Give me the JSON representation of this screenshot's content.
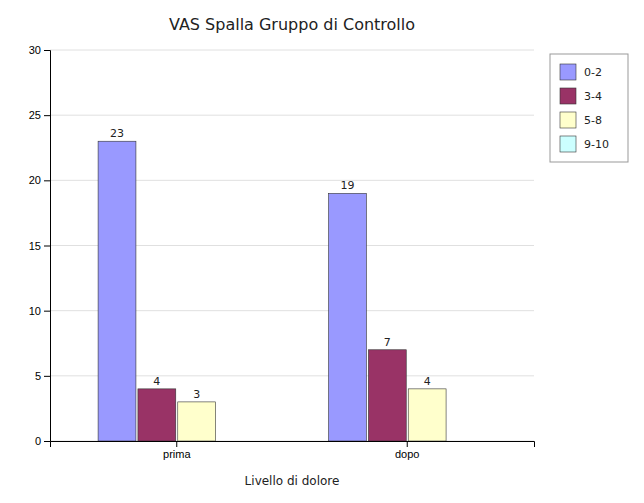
{
  "chart_data": {
    "type": "bar",
    "title": "VAS Spalla Gruppo di Controllo",
    "x_label": "Livello di dolore",
    "categories": [
      "prima",
      "dopo"
    ],
    "series": [
      {
        "name": "0-2",
        "color": "#9999ff",
        "values": [
          23,
          19
        ]
      },
      {
        "name": "3-4",
        "color": "#993366",
        "values": [
          4,
          7
        ]
      },
      {
        "name": "5-8",
        "color": "#ffffcc",
        "values": [
          3,
          4
        ]
      },
      {
        "name": "9-10",
        "color": "#ccffff",
        "values": [
          0,
          0
        ]
      }
    ],
    "ylim": [
      0,
      30
    ],
    "yticks": [
      0,
      5,
      10,
      15,
      20,
      25,
      30
    ],
    "grid": true,
    "legend": "right",
    "data_labels": true
  }
}
